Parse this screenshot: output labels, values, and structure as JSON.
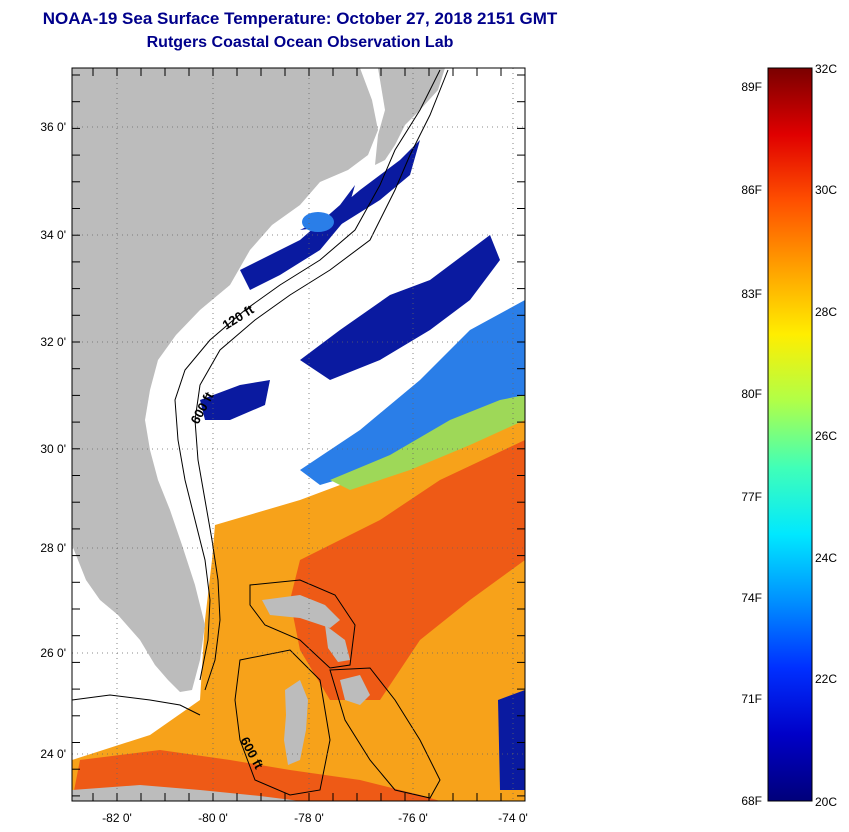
{
  "header": {
    "title": "NOAA-19 Sea Surface Temperature:  October 27, 2018 2151 GMT",
    "subtitle": "Rutgers Coastal Ocean Observation Lab"
  },
  "map": {
    "lat_labels": [
      "36 0'",
      "34 0'",
      "32 0'",
      "30 0'",
      "28 0'",
      "26 0'",
      "24 0'"
    ],
    "lon_labels": [
      "-82 0'",
      "-80 0'",
      "-78 0'",
      "-76 0'",
      "-74 0'"
    ],
    "contour_labels": [
      "120 ft",
      "600 ft",
      "600 ft"
    ],
    "colors": {
      "land": "#bcbcbc",
      "cloud": "#ffffff",
      "cold": "#0a1aa0",
      "cool": "#2a7ee8",
      "mid": "#9ed858",
      "warm": "#f7a21a",
      "hot": "#ee5a16"
    }
  },
  "colorbar": {
    "f_labels": [
      "89F",
      "86F",
      "83F",
      "80F",
      "77F",
      "74F",
      "71F",
      "68F"
    ],
    "c_labels": [
      "32C",
      "30C",
      "28C",
      "26C",
      "24C",
      "22C",
      "20C"
    ],
    "scale_colors": [
      "#00007a",
      "#0000c8",
      "#0030ff",
      "#0090ff",
      "#00e8ff",
      "#40ffb8",
      "#b0ff48",
      "#ffee00",
      "#ffa000",
      "#ff5000",
      "#e00000",
      "#7a0000"
    ]
  }
}
